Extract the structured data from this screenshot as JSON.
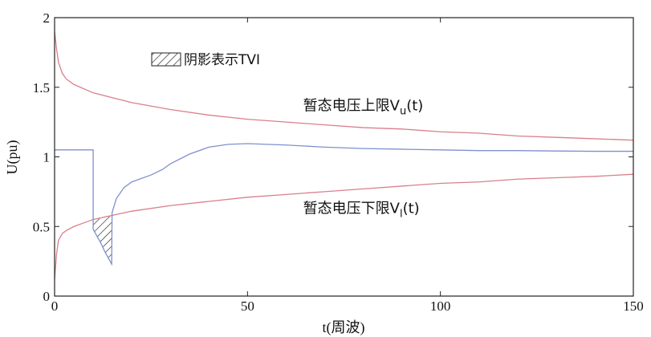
{
  "chart_data": {
    "type": "line",
    "xlabel": "t(周波)",
    "ylabel": "U(pu)",
    "xlim": [
      0,
      150
    ],
    "ylim": [
      0,
      2
    ],
    "xticks": [
      0,
      50,
      100,
      150
    ],
    "yticks": [
      0,
      0.5,
      1,
      1.5,
      2
    ],
    "xtick_labels": [
      "0",
      "50",
      "100",
      "150"
    ],
    "ytick_labels": [
      "0",
      "0.5",
      "1",
      "1.5",
      "2"
    ],
    "grid": false,
    "legend": {
      "label": "阴影表示TVI",
      "placement": "top-left"
    },
    "annotations": [
      {
        "text": "暂态电压上限",
        "sym": "V",
        "sub": "u",
        "suffix": "(t)",
        "at": [
          64,
          1.37
        ]
      },
      {
        "text": "暂态电压下限",
        "sym": "V",
        "sub": "l",
        "suffix": "(t)",
        "at": [
          64,
          0.63
        ]
      }
    ],
    "series": [
      {
        "role": "upper_limit",
        "color": "#d9808a",
        "points": [
          [
            0,
            1.9
          ],
          [
            0.5,
            1.78
          ],
          [
            1,
            1.68
          ],
          [
            2,
            1.6
          ],
          [
            3,
            1.56
          ],
          [
            5,
            1.52
          ],
          [
            10,
            1.46
          ],
          [
            20,
            1.39
          ],
          [
            30,
            1.34
          ],
          [
            40,
            1.3
          ],
          [
            50,
            1.27
          ],
          [
            60,
            1.25
          ],
          [
            70,
            1.23
          ],
          [
            80,
            1.21
          ],
          [
            90,
            1.2
          ],
          [
            100,
            1.18
          ],
          [
            110,
            1.17
          ],
          [
            120,
            1.15
          ],
          [
            130,
            1.14
          ],
          [
            140,
            1.13
          ],
          [
            150,
            1.12
          ]
        ]
      },
      {
        "role": "lower_limit",
        "color": "#d9808a",
        "points": [
          [
            0,
            0.12
          ],
          [
            0.5,
            0.3
          ],
          [
            1,
            0.4
          ],
          [
            2,
            0.45
          ],
          [
            3,
            0.47
          ],
          [
            5,
            0.5
          ],
          [
            8,
            0.53
          ],
          [
            10,
            0.55
          ],
          [
            15,
            0.58
          ],
          [
            20,
            0.61
          ],
          [
            30,
            0.65
          ],
          [
            40,
            0.68
          ],
          [
            50,
            0.71
          ],
          [
            60,
            0.73
          ],
          [
            70,
            0.75
          ],
          [
            80,
            0.77
          ],
          [
            90,
            0.79
          ],
          [
            100,
            0.81
          ],
          [
            110,
            0.82
          ],
          [
            120,
            0.84
          ],
          [
            130,
            0.85
          ],
          [
            140,
            0.86
          ],
          [
            150,
            0.875
          ]
        ]
      },
      {
        "role": "voltage",
        "color": "#7f90cf",
        "points": [
          [
            0,
            1.05
          ],
          [
            10,
            1.05
          ],
          [
            10,
            0.48
          ],
          [
            11,
            0.43
          ],
          [
            12,
            0.38
          ],
          [
            13,
            0.32
          ],
          [
            14,
            0.27
          ],
          [
            14.8,
            0.23
          ],
          [
            14.9,
            0.6
          ],
          [
            16,
            0.7
          ],
          [
            18,
            0.78
          ],
          [
            20,
            0.82
          ],
          [
            25,
            0.87
          ],
          [
            28,
            0.91
          ],
          [
            30,
            0.95
          ],
          [
            35,
            1.02
          ],
          [
            40,
            1.07
          ],
          [
            45,
            1.09
          ],
          [
            50,
            1.095
          ],
          [
            60,
            1.085
          ],
          [
            70,
            1.07
          ],
          [
            80,
            1.06
          ],
          [
            90,
            1.055
          ],
          [
            100,
            1.05
          ],
          [
            110,
            1.045
          ],
          [
            120,
            1.045
          ],
          [
            130,
            1.042
          ],
          [
            140,
            1.04
          ],
          [
            150,
            1.04
          ]
        ]
      }
    ],
    "shaded_region": {
      "x": [
        10,
        14.8
      ],
      "hatch": "diagonal"
    }
  }
}
